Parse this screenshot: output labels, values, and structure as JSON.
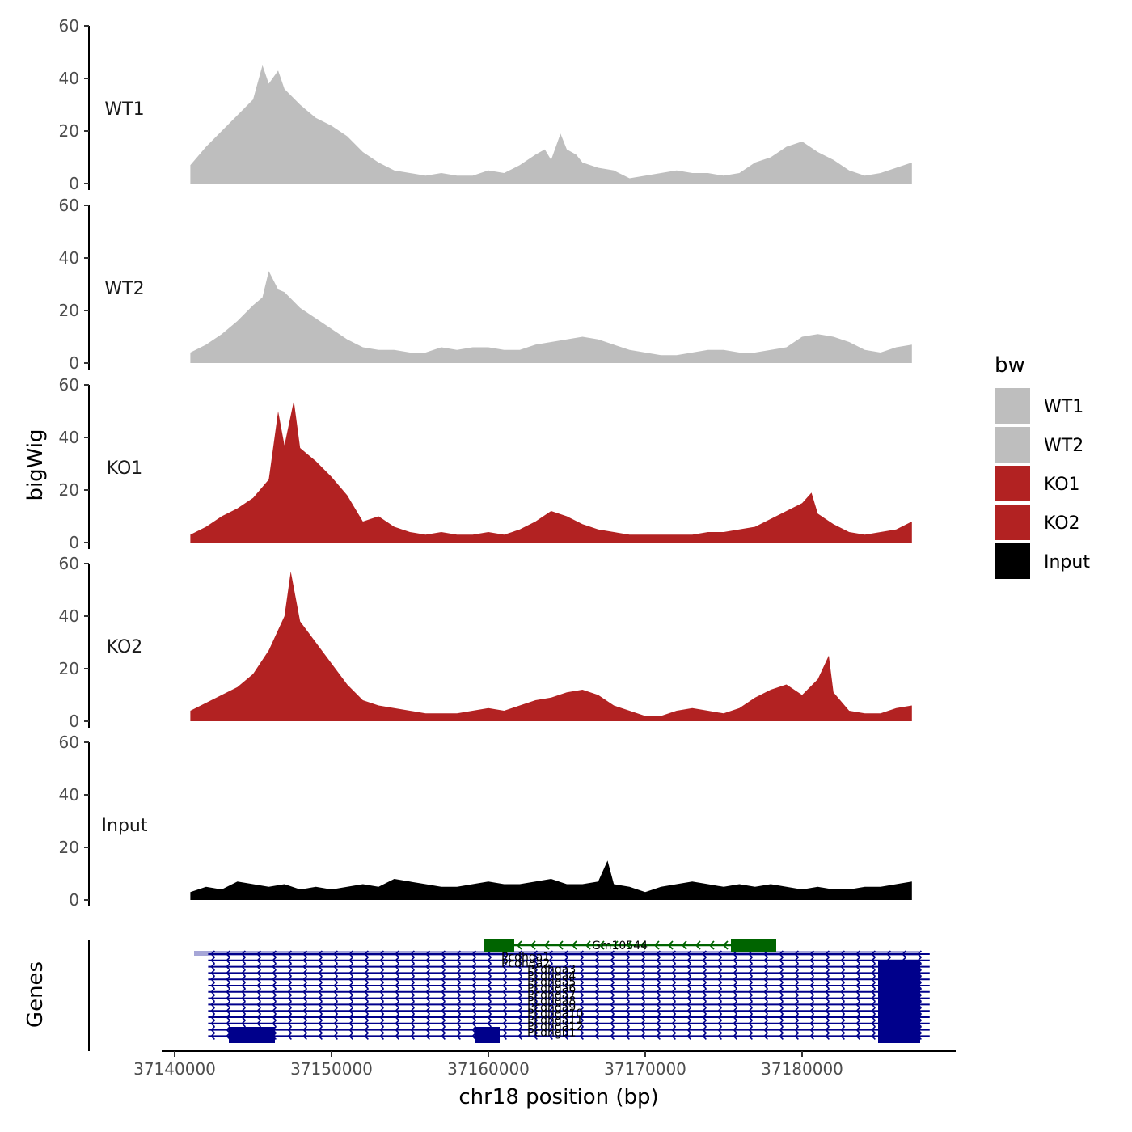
{
  "chart_data": {
    "type": "area",
    "xlabel": "chr18 position (bp)",
    "ylabel": "bigWig",
    "genes_label": "Genes",
    "chromosome": "chr18",
    "xlim": [
      37138000,
      37187500
    ],
    "xticks": [
      37140000,
      37150000,
      37160000,
      37170000,
      37180000
    ],
    "xtick_labels": [
      "37140000",
      "37150000",
      "37160000",
      "37170000",
      "37180000"
    ],
    "ylim": [
      0,
      60
    ],
    "yticks": [
      0,
      20,
      40,
      60
    ],
    "ytick_labels": [
      "0",
      "20",
      "40",
      "60"
    ],
    "legend": {
      "title": "bw",
      "position": "right",
      "entries": [
        {
          "label": "WT1",
          "color": "#BEBEBE"
        },
        {
          "label": "WT2",
          "color": "#BEBEBE"
        },
        {
          "label": "KO1",
          "color": "#B22222"
        },
        {
          "label": "KO2",
          "color": "#B22222"
        },
        {
          "label": "Input",
          "color": "#000000"
        }
      ]
    },
    "series": [
      {
        "name": "WT1",
        "color": "#BEBEBE",
        "x": [
          37141000,
          37142000,
          37143000,
          37144000,
          37145000,
          37145600,
          37146000,
          37146600,
          37147000,
          37148000,
          37149000,
          37150000,
          37151000,
          37152000,
          37153000,
          37154000,
          37155000,
          37156000,
          37157000,
          37158000,
          37159000,
          37160000,
          37161000,
          37162000,
          37163000,
          37163600,
          37164000,
          37164600,
          37165000,
          37165600,
          37166000,
          37167000,
          37168000,
          37169000,
          37170000,
          37171000,
          37172000,
          37173000,
          37174000,
          37175000,
          37176000,
          37177000,
          37178000,
          37179000,
          37180000,
          37181000,
          37182000,
          37183000,
          37184000,
          37185000,
          37186000,
          37187000
        ],
        "values": [
          7,
          14,
          20,
          26,
          32,
          45,
          38,
          43,
          36,
          30,
          25,
          22,
          18,
          12,
          8,
          5,
          4,
          3,
          4,
          3,
          3,
          5,
          4,
          7,
          11,
          13,
          9,
          19,
          13,
          11,
          8,
          6,
          5,
          2,
          3,
          4,
          5,
          4,
          4,
          3,
          4,
          8,
          10,
          14,
          16,
          12,
          9,
          5,
          3,
          4,
          6,
          8
        ]
      },
      {
        "name": "WT2",
        "color": "#BEBEBE",
        "x": [
          37141000,
          37142000,
          37143000,
          37144000,
          37145000,
          37145600,
          37146000,
          37146600,
          37147000,
          37148000,
          37149000,
          37150000,
          37151000,
          37152000,
          37153000,
          37154000,
          37155000,
          37156000,
          37157000,
          37158000,
          37159000,
          37160000,
          37161000,
          37162000,
          37163000,
          37164000,
          37165000,
          37166000,
          37167000,
          37168000,
          37169000,
          37170000,
          37171000,
          37172000,
          37173000,
          37174000,
          37175000,
          37176000,
          37177000,
          37178000,
          37179000,
          37180000,
          37181000,
          37182000,
          37183000,
          37184000,
          37185000,
          37186000,
          37187000
        ],
        "values": [
          4,
          7,
          11,
          16,
          22,
          25,
          35,
          28,
          27,
          21,
          17,
          13,
          9,
          6,
          5,
          5,
          4,
          4,
          6,
          5,
          6,
          6,
          5,
          5,
          7,
          8,
          9,
          10,
          9,
          7,
          5,
          4,
          3,
          3,
          4,
          5,
          5,
          4,
          4,
          5,
          6,
          10,
          11,
          10,
          8,
          5,
          4,
          6,
          7
        ]
      },
      {
        "name": "KO1",
        "color": "#B22222",
        "x": [
          37141000,
          37142000,
          37143000,
          37144000,
          37145000,
          37146000,
          37146600,
          37147000,
          37147600,
          37148000,
          37149000,
          37150000,
          37151000,
          37152000,
          37153000,
          37154000,
          37155000,
          37156000,
          37157000,
          37158000,
          37159000,
          37160000,
          37161000,
          37162000,
          37163000,
          37164000,
          37165000,
          37166000,
          37167000,
          37168000,
          37169000,
          37170000,
          37171000,
          37172000,
          37173000,
          37174000,
          37175000,
          37176000,
          37177000,
          37178000,
          37179000,
          37180000,
          37180600,
          37181000,
          37182000,
          37183000,
          37184000,
          37185000,
          37186000,
          37187000
        ],
        "values": [
          3,
          6,
          10,
          13,
          17,
          24,
          50,
          37,
          54,
          36,
          31,
          25,
          18,
          8,
          10,
          6,
          4,
          3,
          4,
          3,
          3,
          4,
          3,
          5,
          8,
          12,
          10,
          7,
          5,
          4,
          3,
          3,
          3,
          3,
          3,
          4,
          4,
          5,
          6,
          9,
          12,
          15,
          19,
          11,
          7,
          4,
          3,
          4,
          5,
          8
        ]
      },
      {
        "name": "KO2",
        "color": "#B22222",
        "x": [
          37141000,
          37142000,
          37143000,
          37144000,
          37145000,
          37146000,
          37147000,
          37147400,
          37148000,
          37149000,
          37150000,
          37151000,
          37152000,
          37153000,
          37154000,
          37155000,
          37156000,
          37157000,
          37158000,
          37159000,
          37160000,
          37161000,
          37162000,
          37163000,
          37164000,
          37165000,
          37166000,
          37167000,
          37168000,
          37169000,
          37170000,
          37171000,
          37172000,
          37173000,
          37174000,
          37175000,
          37176000,
          37177000,
          37178000,
          37179000,
          37180000,
          37181000,
          37181700,
          37182000,
          37183000,
          37184000,
          37185000,
          37186000,
          37187000
        ],
        "values": [
          4,
          7,
          10,
          13,
          18,
          27,
          40,
          57,
          38,
          30,
          22,
          14,
          8,
          6,
          5,
          4,
          3,
          3,
          3,
          4,
          5,
          4,
          6,
          8,
          9,
          11,
          12,
          10,
          6,
          4,
          2,
          2,
          4,
          5,
          4,
          3,
          5,
          9,
          12,
          14,
          10,
          16,
          25,
          11,
          4,
          3,
          3,
          5,
          6
        ]
      },
      {
        "name": "Input",
        "color": "#000000",
        "x": [
          37141000,
          37142000,
          37143000,
          37144000,
          37145000,
          37146000,
          37147000,
          37148000,
          37149000,
          37150000,
          37151000,
          37152000,
          37153000,
          37154000,
          37155000,
          37156000,
          37157000,
          37158000,
          37159000,
          37160000,
          37161000,
          37162000,
          37163000,
          37164000,
          37165000,
          37166000,
          37167000,
          37167600,
          37168000,
          37169000,
          37170000,
          37171000,
          37172000,
          37173000,
          37174000,
          37175000,
          37176000,
          37177000,
          37178000,
          37179000,
          37180000,
          37181000,
          37182000,
          37183000,
          37184000,
          37185000,
          37186000,
          37187000
        ],
        "values": [
          3,
          5,
          4,
          7,
          6,
          5,
          6,
          4,
          5,
          4,
          5,
          6,
          5,
          8,
          7,
          6,
          5,
          5,
          6,
          7,
          6,
          6,
          7,
          8,
          6,
          6,
          7,
          15,
          6,
          5,
          3,
          5,
          6,
          7,
          6,
          5,
          6,
          5,
          6,
          5,
          4,
          5,
          4,
          4,
          5,
          5,
          6,
          7
        ]
      }
    ],
    "gene_track": {
      "genes": [
        {
          "name": "Gm10544",
          "start": 37160000,
          "end": 37178500,
          "strand": "-",
          "color": "#006400"
        },
        {
          "name": "Pcdhga",
          "start": 37141000,
          "end": 37187000,
          "strand": "-",
          "color": "#00008B"
        }
      ],
      "transcript_labels": [
        "Pcdhga1",
        "Pcdhga2",
        "Pcdhga3",
        "Pcdhga4",
        "Pcdhga5",
        "Pcdhga6",
        "Pcdhga7",
        "Pcdhga8",
        "Pcdhga9",
        "Pcdhga10",
        "Pcdhga11",
        "Pcdhga12",
        "Pcdhgb1"
      ]
    }
  }
}
